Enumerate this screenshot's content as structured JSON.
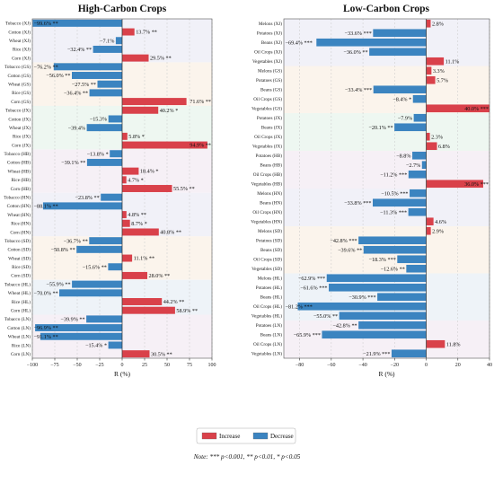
{
  "note": "Note: *** p<0.001, ** p<0.01, * p<0.05",
  "legend": [
    {
      "label": "Increase",
      "color": "#d9414a"
    },
    {
      "label": "Decrease",
      "color": "#3b84c0"
    }
  ],
  "chart_data": [
    {
      "type": "bar",
      "orientation": "horizontal",
      "title": "High-Carbon Crops",
      "xlabel": "R (%)",
      "xlim": [
        -100,
        100
      ],
      "xticks": [
        -100,
        -75,
        -50,
        -25,
        0,
        25,
        50,
        75,
        100
      ],
      "grid": true,
      "groups": [
        {
          "region": "XJ",
          "shade": "#f1f1f8",
          "bars": [
            {
              "label": "Tobacco (XJ)",
              "value": -99.6,
              "text": "−99.6% **"
            },
            {
              "label": "Cotton (XJ)",
              "value": 13.7,
              "text": "13.7% **"
            },
            {
              "label": "Wheat (XJ)",
              "value": -7.1,
              "text": "−7.1%"
            },
            {
              "label": "Rice (XJ)",
              "value": -32.4,
              "text": "−32.4% **"
            },
            {
              "label": "Corn (XJ)",
              "value": 29.5,
              "text": "29.5% **"
            }
          ]
        },
        {
          "region": "GS",
          "shade": "#fbf4ec",
          "bars": [
            {
              "label": "Tobacco (GS)",
              "value": -76.2,
              "text": "−76.2% **"
            },
            {
              "label": "Cotton (GS)",
              "value": -56.0,
              "text": "−56.0% **"
            },
            {
              "label": "Wheat (GS)",
              "value": -27.5,
              "text": "−27.5% **"
            },
            {
              "label": "Rice (GS)",
              "value": -36.4,
              "text": "−36.4% **"
            },
            {
              "label": "Corn (GS)",
              "value": 71.6,
              "text": "71.6% **"
            }
          ]
        },
        {
          "region": "JX",
          "shade": "#eef7f1",
          "bars": [
            {
              "label": "Tobacco (JX)",
              "value": 40.2,
              "text": "40.2% *"
            },
            {
              "label": "Cotton (JX)",
              "value": -15.3,
              "text": "−15.3%"
            },
            {
              "label": "Wheat (JX)",
              "value": -39.4,
              "text": "−39.4%"
            },
            {
              "label": "Rice (JX)",
              "value": 5.8,
              "text": "5.8% *"
            },
            {
              "label": "Corn (JX)",
              "value": 94.9,
              "text": "94.9% **"
            }
          ]
        },
        {
          "region": "HB",
          "shade": "#f6f0f6",
          "bars": [
            {
              "label": "Tobacco (HB)",
              "value": -13.8,
              "text": "−13.8% *"
            },
            {
              "label": "Cotton (HB)",
              "value": -39.1,
              "text": "−39.1% **"
            },
            {
              "label": "Wheat (HB)",
              "value": 18.4,
              "text": "18.4% *"
            },
            {
              "label": "Rice (HB)",
              "value": 4.7,
              "text": "4.7% *"
            },
            {
              "label": "Corn (HB)",
              "value": 55.5,
              "text": "55.5% **"
            }
          ]
        },
        {
          "region": "HN",
          "shade": "#f1f1f8",
          "bars": [
            {
              "label": "Tobacco (HN)",
              "value": -23.8,
              "text": "−23.8% **"
            },
            {
              "label": "Cotton (HN)",
              "value": -88.1,
              "text": "−88.1% **"
            },
            {
              "label": "Wheat (HN)",
              "value": 4.8,
              "text": "4.8% **"
            },
            {
              "label": "Rice (HN)",
              "value": 8.7,
              "text": "8.7% *"
            },
            {
              "label": "Corn (HN)",
              "value": 40.8,
              "text": "40.8% **"
            }
          ]
        },
        {
          "region": "SD",
          "shade": "#fbf4ec",
          "bars": [
            {
              "label": "Tobacco (SD)",
              "value": -36.7,
              "text": "−36.7% **"
            },
            {
              "label": "Cotton (SD)",
              "value": -50.8,
              "text": "−50.8% **"
            },
            {
              "label": "Wheat (SD)",
              "value": 11.1,
              "text": "11.1% **"
            },
            {
              "label": "Rice (SD)",
              "value": -15.6,
              "text": "−15.6% **"
            },
            {
              "label": "Corn (SD)",
              "value": 28.0,
              "text": "28.0% **"
            }
          ]
        },
        {
          "region": "HL",
          "shade": "#eef3f8",
          "bars": [
            {
              "label": "Tobacco (HL)",
              "value": -55.9,
              "text": "−55.9% **"
            },
            {
              "label": "Wheat (HL)",
              "value": -70.0,
              "text": "−70.0% **"
            },
            {
              "label": "Rice (HL)",
              "value": 44.2,
              "text": "44.2% **"
            },
            {
              "label": "Corn (HL)",
              "value": 58.9,
              "text": "58.9% **"
            }
          ]
        },
        {
          "region": "LN",
          "shade": "#f6f0f6",
          "bars": [
            {
              "label": "Tobacco (LN)",
              "value": -39.9,
              "text": "−39.9% **"
            },
            {
              "label": "Cotton (LN)",
              "value": -96.9,
              "text": "−96.9% **"
            },
            {
              "label": "Wheat (LN)",
              "value": -91.1,
              "text": "−91.1% **"
            },
            {
              "label": "Rice (LN)",
              "value": -15.4,
              "text": "−15.4% *"
            },
            {
              "label": "Corn (LN)",
              "value": 30.5,
              "text": "30.5% **"
            }
          ]
        }
      ]
    },
    {
      "type": "bar",
      "orientation": "horizontal",
      "title": "Low-Carbon Crops",
      "xlabel": "R (%)",
      "xlim": [
        -90,
        40
      ],
      "xticks": [
        -80,
        -60,
        -40,
        -20,
        0,
        20,
        40
      ],
      "grid": true,
      "groups": [
        {
          "region": "XJ",
          "shade": "#f1f1f8",
          "bars": [
            {
              "label": "Melons (XJ)",
              "value": 2.8,
              "text": "2.8%"
            },
            {
              "label": "Potatoes (XJ)",
              "value": -33.6,
              "text": "−33.6% ***"
            },
            {
              "label": "Beans (XJ)",
              "value": -69.4,
              "text": "−69.4% ***"
            },
            {
              "label": "Oil Crops (XJ)",
              "value": -36.0,
              "text": "−36.0% **"
            },
            {
              "label": "Vegetables (XJ)",
              "value": 11.1,
              "text": "11.1%"
            }
          ]
        },
        {
          "region": "GS",
          "shade": "#fbf4ec",
          "bars": [
            {
              "label": "Melons (GS)",
              "value": 3.3,
              "text": "3.3%"
            },
            {
              "label": "Potatoes (GS)",
              "value": 5.7,
              "text": "5.7%"
            },
            {
              "label": "Beans (GS)",
              "value": -33.4,
              "text": "−33.4% ***"
            },
            {
              "label": "Oil Crops (GS)",
              "value": -8.4,
              "text": "−8.4% *"
            },
            {
              "label": "Vegetables (GS)",
              "value": 40.0,
              "text": "40.0% ***"
            }
          ]
        },
        {
          "region": "JX",
          "shade": "#eef7f1",
          "bars": [
            {
              "label": "Potatoes (JX)",
              "value": -7.9,
              "text": "−7.9%"
            },
            {
              "label": "Beans (JX)",
              "value": -20.1,
              "text": "−20.1% **"
            },
            {
              "label": "Oil Crops (JX)",
              "value": 2.3,
              "text": "2.3%"
            },
            {
              "label": "Vegetables (JX)",
              "value": 6.8,
              "text": "6.8%"
            }
          ]
        },
        {
          "region": "HB",
          "shade": "#f6f0f6",
          "bars": [
            {
              "label": "Potatoes (HB)",
              "value": -8.8,
              "text": "−8.8%"
            },
            {
              "label": "Beans (HB)",
              "value": -2.7,
              "text": "−2.7%"
            },
            {
              "label": "Oil Crops (HB)",
              "value": -11.2,
              "text": "−11.2% ***"
            },
            {
              "label": "Vegetables (HB)",
              "value": 36.0,
              "text": "36.0% ***"
            }
          ]
        },
        {
          "region": "HN",
          "shade": "#f1f1f8",
          "bars": [
            {
              "label": "Melons (HN)",
              "value": -10.5,
              "text": "−10.5% ***"
            },
            {
              "label": "Beans (HN)",
              "value": -33.8,
              "text": "−33.8% ***"
            },
            {
              "label": "Oil Crops (HN)",
              "value": -11.3,
              "text": "−11.3% ***"
            },
            {
              "label": "Vegetables (HN)",
              "value": 4.6,
              "text": "4.6%"
            }
          ]
        },
        {
          "region": "SD",
          "shade": "#fbf4ec",
          "bars": [
            {
              "label": "Melons (SD)",
              "value": 2.9,
              "text": "2.9%"
            },
            {
              "label": "Potatoes (SD)",
              "value": -42.8,
              "text": "−42.8% ***"
            },
            {
              "label": "Beans (SD)",
              "value": -39.6,
              "text": "−39.6% **"
            },
            {
              "label": "Oil Crops (SD)",
              "value": -18.3,
              "text": "−18.3% ***"
            },
            {
              "label": "Vegetables (SD)",
              "value": -12.6,
              "text": "−12.6% **"
            }
          ]
        },
        {
          "region": "HL",
          "shade": "#eef3f8",
          "bars": [
            {
              "label": "Melons (HL)",
              "value": -62.9,
              "text": "−62.9% ***"
            },
            {
              "label": "Potatoes (HL)",
              "value": -61.6,
              "text": "−61.6% ***"
            },
            {
              "label": "Beans (HL)",
              "value": -30.9,
              "text": "−30.9% ***"
            },
            {
              "label": "Oil Crops (HL)",
              "value": -81.2,
              "text": "−81.2% ***"
            },
            {
              "label": "Vegetables (HL)",
              "value": -55.0,
              "text": "−55.0% **"
            }
          ]
        },
        {
          "region": "LN",
          "shade": "#f6f0f6",
          "bars": [
            {
              "label": "Potatoes (LN)",
              "value": -42.8,
              "text": "−42.8% **"
            },
            {
              "label": "Beans (LN)",
              "value": -65.9,
              "text": "−65.9% ***"
            },
            {
              "label": "Oil Crops (LN)",
              "value": 11.8,
              "text": "11.8%"
            },
            {
              "label": "Vegetables (LN)",
              "value": -21.9,
              "text": "−21.9% ***"
            }
          ]
        }
      ]
    }
  ]
}
